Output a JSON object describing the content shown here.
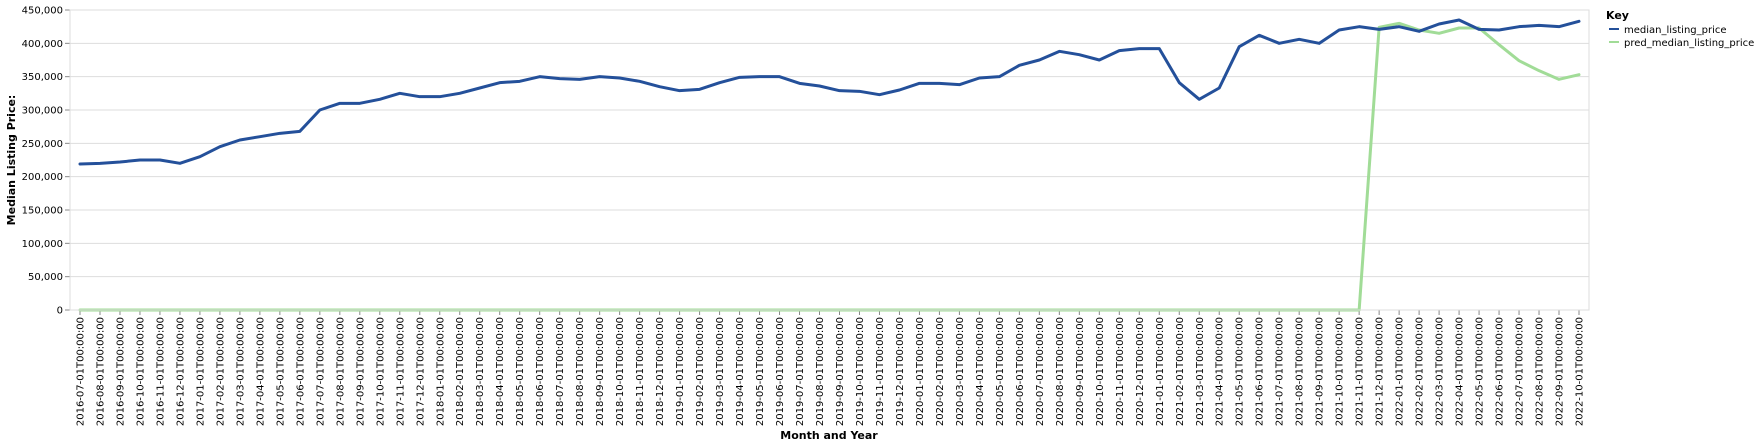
{
  "chart_data": {
    "type": "line",
    "xlabel": "Month and Year",
    "ylabel": "Median Listing Price:",
    "ylim": [
      0,
      450000
    ],
    "yticks": [
      "0",
      "50,000",
      "100,000",
      "150,000",
      "200,000",
      "250,000",
      "300,000",
      "350,000",
      "400,000",
      "450,000"
    ],
    "grid": true,
    "legend": {
      "title": "Key",
      "position": "top-right"
    },
    "x": [
      "2016-07-01T00:00:00",
      "2016-08-01T00:00:00",
      "2016-09-01T00:00:00",
      "2016-10-01T00:00:00",
      "2016-11-01T00:00:00",
      "2016-12-01T00:00:00",
      "2017-01-01T00:00:00",
      "2017-02-01T00:00:00",
      "2017-03-01T00:00:00",
      "2017-04-01T00:00:00",
      "2017-05-01T00:00:00",
      "2017-06-01T00:00:00",
      "2017-07-01T00:00:00",
      "2017-08-01T00:00:00",
      "2017-09-01T00:00:00",
      "2017-10-01T00:00:00",
      "2017-11-01T00:00:00",
      "2017-12-01T00:00:00",
      "2018-01-01T00:00:00",
      "2018-02-01T00:00:00",
      "2018-03-01T00:00:00",
      "2018-04-01T00:00:00",
      "2018-05-01T00:00:00",
      "2018-06-01T00:00:00",
      "2018-07-01T00:00:00",
      "2018-08-01T00:00:00",
      "2018-09-01T00:00:00",
      "2018-10-01T00:00:00",
      "2018-11-01T00:00:00",
      "2018-12-01T00:00:00",
      "2019-01-01T00:00:00",
      "2019-02-01T00:00:00",
      "2019-03-01T00:00:00",
      "2019-04-01T00:00:00",
      "2019-05-01T00:00:00",
      "2019-06-01T00:00:00",
      "2019-07-01T00:00:00",
      "2019-08-01T00:00:00",
      "2019-09-01T00:00:00",
      "2019-10-01T00:00:00",
      "2019-11-01T00:00:00",
      "2019-12-01T00:00:00",
      "2020-01-01T00:00:00",
      "2020-02-01T00:00:00",
      "2020-03-01T00:00:00",
      "2020-04-01T00:00:00",
      "2020-05-01T00:00:00",
      "2020-06-01T00:00:00",
      "2020-07-01T00:00:00",
      "2020-08-01T00:00:00",
      "2020-09-01T00:00:00",
      "2020-10-01T00:00:00",
      "2020-11-01T00:00:00",
      "2020-12-01T00:00:00",
      "2021-01-01T00:00:00",
      "2021-02-01T00:00:00",
      "2021-03-01T00:00:00",
      "2021-04-01T00:00:00",
      "2021-05-01T00:00:00",
      "2021-06-01T00:00:00",
      "2021-07-01T00:00:00",
      "2021-08-01T00:00:00",
      "2021-09-01T00:00:00",
      "2021-10-01T00:00:00",
      "2021-11-01T00:00:00",
      "2021-12-01T00:00:00",
      "2022-01-01T00:00:00",
      "2022-02-01T00:00:00",
      "2022-03-01T00:00:00",
      "2022-04-01T00:00:00",
      "2022-05-01T00:00:00",
      "2022-06-01T00:00:00",
      "2022-07-01T00:00:00",
      "2022-08-01T00:00:00",
      "2022-09-01T00:00:00",
      "2022-10-01T00:00:00"
    ],
    "series": [
      {
        "name": "median_listing_price",
        "color": "#24509a",
        "values": [
          219000,
          220000,
          222000,
          225000,
          225000,
          220000,
          230000,
          245000,
          255000,
          260000,
          265000,
          268000,
          300000,
          310000,
          310000,
          316000,
          325000,
          320000,
          320000,
          325000,
          333000,
          341000,
          343000,
          350000,
          347000,
          346000,
          350000,
          348000,
          343000,
          335000,
          329000,
          331000,
          341000,
          349000,
          350000,
          350000,
          340000,
          336000,
          329000,
          328000,
          323000,
          330000,
          340000,
          340000,
          338000,
          348000,
          350000,
          367000,
          375000,
          388000,
          383000,
          375000,
          389000,
          392000,
          392000,
          341000,
          316000,
          333000,
          395000,
          412000,
          400000,
          406000,
          400000,
          420000,
          425000,
          421000,
          425000,
          418000,
          429000,
          435000,
          421000,
          420000,
          425000,
          427000,
          425000,
          433000
        ]
      },
      {
        "name": "pred_median_listing_price",
        "color": "#a1dc97",
        "values": [
          0,
          0,
          0,
          0,
          0,
          0,
          0,
          0,
          0,
          0,
          0,
          0,
          0,
          0,
          0,
          0,
          0,
          0,
          0,
          0,
          0,
          0,
          0,
          0,
          0,
          0,
          0,
          0,
          0,
          0,
          0,
          0,
          0,
          0,
          0,
          0,
          0,
          0,
          0,
          0,
          0,
          0,
          0,
          0,
          0,
          0,
          0,
          0,
          0,
          0,
          0,
          0,
          0,
          0,
          0,
          0,
          0,
          0,
          0,
          0,
          0,
          0,
          0,
          0,
          0,
          424000,
          430000,
          420000,
          415000,
          423000,
          423000,
          398000,
          374000,
          359000,
          346000,
          353000
        ]
      }
    ]
  }
}
